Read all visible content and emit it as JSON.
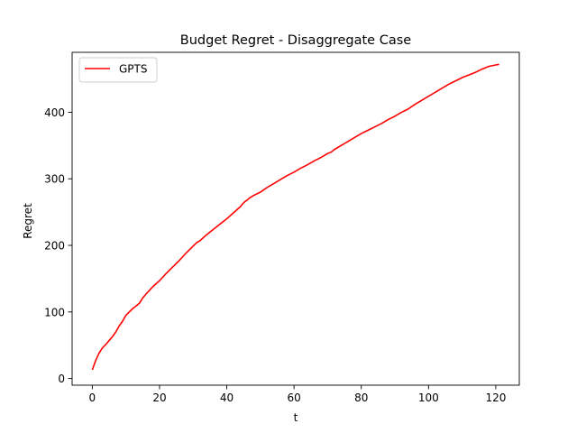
{
  "chart_data": {
    "type": "line",
    "title": "Budget Regret - Disaggregate Case",
    "xlabel": "t",
    "ylabel": "Regret",
    "xlim": [
      -6,
      127
    ],
    "ylim": [
      -10,
      490
    ],
    "xticks": [
      0,
      20,
      40,
      60,
      80,
      100,
      120
    ],
    "yticks": [
      0,
      100,
      200,
      300,
      400
    ],
    "grid": false,
    "legend": {
      "position": "top-left"
    },
    "series": [
      {
        "name": "GPTS",
        "color": "#ff0000",
        "x": [
          0,
          1,
          2,
          3,
          4,
          5,
          6,
          7,
          8,
          9,
          10,
          12,
          14,
          15,
          16,
          18,
          20,
          22,
          24,
          26,
          28,
          30,
          31,
          32,
          34,
          36,
          38,
          40,
          42,
          44,
          45,
          46,
          47,
          48,
          50,
          52,
          54,
          56,
          58,
          60,
          62,
          64,
          66,
          68,
          70,
          71,
          72,
          74,
          76,
          78,
          80,
          82,
          84,
          86,
          88,
          90,
          92,
          94,
          96,
          98,
          100,
          102,
          104,
          106,
          108,
          110,
          112,
          114,
          116,
          118,
          120,
          121
        ],
        "y": [
          13,
          27,
          38,
          46,
          51,
          57,
          63,
          70,
          79,
          86,
          95,
          105,
          113,
          121,
          127,
          138,
          147,
          158,
          168,
          178,
          189,
          199,
          204,
          207,
          216,
          224,
          232,
          240,
          249,
          258,
          264,
          268,
          272,
          275,
          280,
          287,
          293,
          299,
          305,
          310,
          316,
          321,
          327,
          332,
          338,
          340,
          344,
          350,
          356,
          362,
          368,
          373,
          378,
          383,
          389,
          394,
          400,
          405,
          412,
          418,
          424,
          430,
          436,
          442,
          447,
          452,
          456,
          460,
          465,
          469,
          471,
          472
        ]
      }
    ]
  }
}
